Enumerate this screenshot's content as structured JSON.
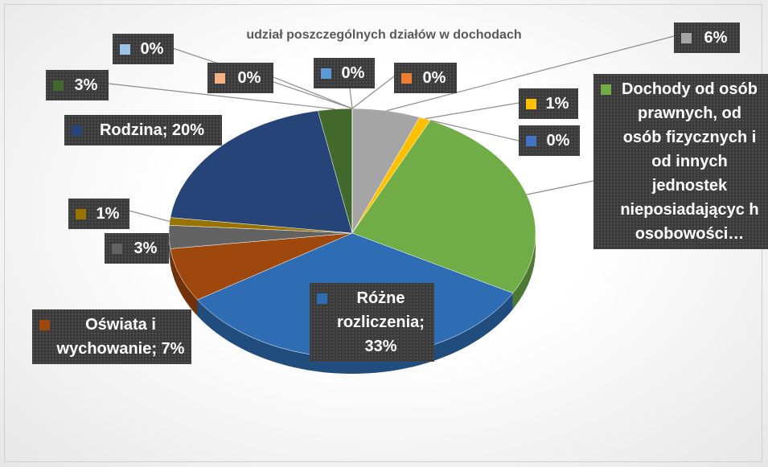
{
  "chart_data": {
    "type": "pie",
    "title": "udział poszczególnych działów w dochodach",
    "values": [
      6,
      1,
      0,
      26,
      33,
      7,
      3,
      1,
      20,
      3,
      0,
      0,
      0,
      0
    ],
    "value_labels": [
      "6%",
      "1%",
      "0%",
      "Dochody od osób prawnych, od osób fizycznych i od innych jednostek nieposiadającyc h osobowości…",
      "Różne rozliczenia; 33%",
      "Oświata i wychowanie; 7%",
      "3%",
      "1%",
      "Rodzina; 20%",
      "3%",
      "0%",
      "0%",
      "0%",
      "0%"
    ],
    "colors": [
      "#a5a5a5",
      "#ffc000",
      "#4472c4",
      "#70ad47",
      "#2e6db4",
      "#9e480e",
      "#636363",
      "#997300",
      "#264478",
      "#43682b",
      "#9dc3e6",
      "#f4b183",
      "#5b9bd5",
      "#ed7d31"
    ]
  }
}
